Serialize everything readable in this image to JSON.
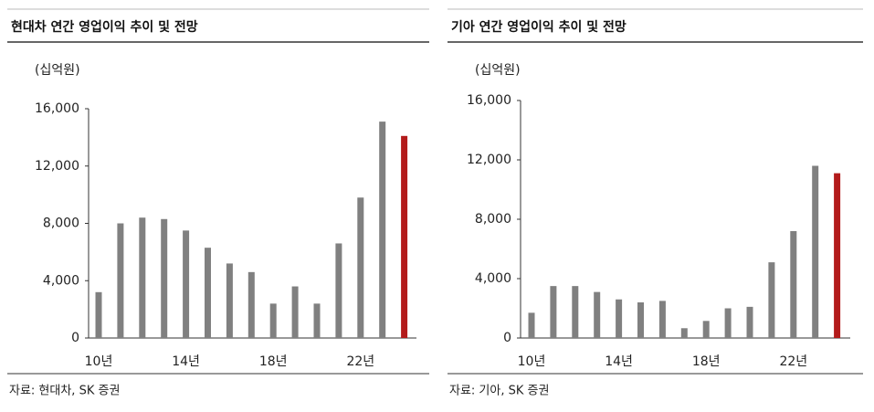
{
  "chart_data": [
    {
      "type": "bar",
      "title": "현대차 연간 영업이익 추이 및 전망",
      "unit": "(십억원)",
      "source": "자료: 현대차, SK 증권",
      "categories": [
        "10년",
        null,
        null,
        null,
        "14년",
        null,
        null,
        null,
        "18년",
        null,
        null,
        null,
        "22년",
        null,
        null
      ],
      "values": [
        3200,
        8000,
        8400,
        8300,
        7500,
        6300,
        5200,
        4600,
        2400,
        3600,
        2400,
        6600,
        9800,
        15100,
        14100
      ],
      "colors": [
        "#808080",
        "#808080",
        "#808080",
        "#808080",
        "#808080",
        "#808080",
        "#808080",
        "#808080",
        "#808080",
        "#808080",
        "#808080",
        "#808080",
        "#808080",
        "#808080",
        "#b31b1b"
      ],
      "ylim": [
        0,
        16000
      ],
      "yticks": [
        0,
        {
          "value": 4000,
          "label": "4,000"
        },
        {
          "value": 8000,
          "label": "8,000"
        },
        {
          "value": 12000,
          "label": "12,000"
        },
        {
          "value": 16000,
          "label": "16,000"
        }
      ]
    },
    {
      "type": "bar",
      "title": "기아 연간 영업이익 추이 및 전망",
      "unit": "(십억원)",
      "source": "자료: 기아, SK 증권",
      "categories": [
        "10년",
        null,
        null,
        null,
        "14년",
        null,
        null,
        null,
        "18년",
        null,
        null,
        null,
        "22년",
        null,
        null
      ],
      "values": [
        1700,
        3500,
        3500,
        3100,
        2600,
        2400,
        2500,
        660,
        1150,
        2000,
        2100,
        5100,
        7200,
        11600,
        11100
      ],
      "colors": [
        "#808080",
        "#808080",
        "#808080",
        "#808080",
        "#808080",
        "#808080",
        "#808080",
        "#808080",
        "#808080",
        "#808080",
        "#808080",
        "#808080",
        "#808080",
        "#808080",
        "#b31b1b"
      ],
      "ylim": [
        0,
        16000
      ],
      "yticks": [
        0,
        {
          "value": 4000,
          "label": "4,000"
        },
        {
          "value": 8000,
          "label": "8,000"
        },
        {
          "value": 12000,
          "label": "12,000"
        },
        {
          "value": 16000,
          "label": "16,000"
        }
      ]
    }
  ]
}
